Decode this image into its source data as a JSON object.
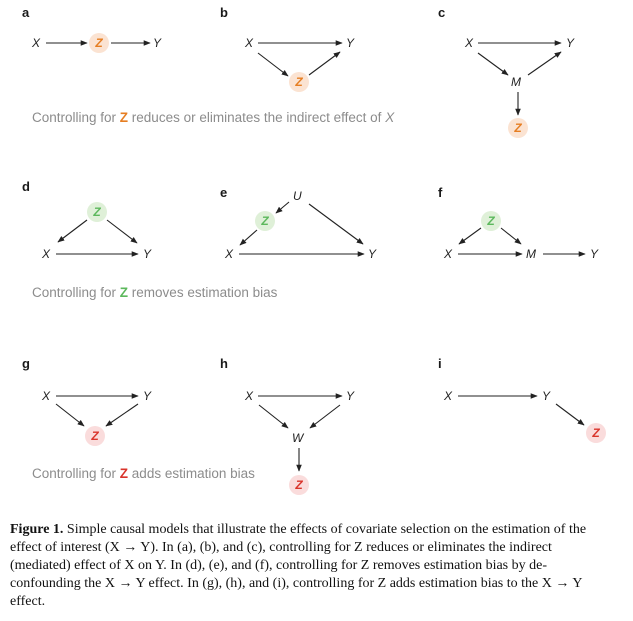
{
  "colors": {
    "mediator_z_fill": "#fbe3d2",
    "mediator_z_text": "#e67e22",
    "confounder_z_fill": "#dff0d8",
    "confounder_z_text": "#5cb85c",
    "collider_z_fill": "#fadcdc",
    "collider_z_text": "#d9342b",
    "edge": "#222222",
    "caption_text": "#8c8c8c"
  },
  "panels": {
    "a": {
      "label": "a",
      "x": "X",
      "z": "Z",
      "y": "Y"
    },
    "b": {
      "label": "b",
      "x": "X",
      "y": "Y",
      "z": "Z"
    },
    "c": {
      "label": "c",
      "x": "X",
      "y": "Y",
      "m": "M",
      "z": "Z"
    },
    "d": {
      "label": "d",
      "z": "Z",
      "x": "X",
      "y": "Y"
    },
    "e": {
      "label": "e",
      "u": "U",
      "z": "Z",
      "x": "X",
      "y": "Y"
    },
    "f": {
      "label": "f",
      "z": "Z",
      "x": "X",
      "m": "M",
      "y": "Y"
    },
    "g": {
      "label": "g",
      "x": "X",
      "y": "Y",
      "z": "Z"
    },
    "h": {
      "label": "h",
      "x": "X",
      "y": "Y",
      "w": "W",
      "z": "Z"
    },
    "i": {
      "label": "i",
      "x": "X",
      "y": "Y",
      "z": "Z"
    }
  },
  "row_captions": {
    "row1": {
      "pre": "Controlling for ",
      "z": "Z",
      "post": " reduces or eliminates the indirect effect of ",
      "x": "X"
    },
    "row2": {
      "pre": "Controlling for ",
      "z": "Z",
      "post": " removes estimation bias"
    },
    "row3": {
      "pre": "Controlling for ",
      "z": "Z",
      "post": " adds estimation bias"
    }
  },
  "figure_caption": {
    "label": "Figure 1.",
    "text": " Simple causal models that illustrate the effects of covariate selection on the estimation of the effect of interest (X → Y). In (a), (b), and (c), controlling for Z reduces or eliminates the indirect (mediated) effect of X on Y. In (d), (e), and (f), controlling for Z removes estimation bias by de-confounding the X → Y effect. In (g), (h), and (i), controlling for Z adds estimation bias to the X → Y effect."
  }
}
